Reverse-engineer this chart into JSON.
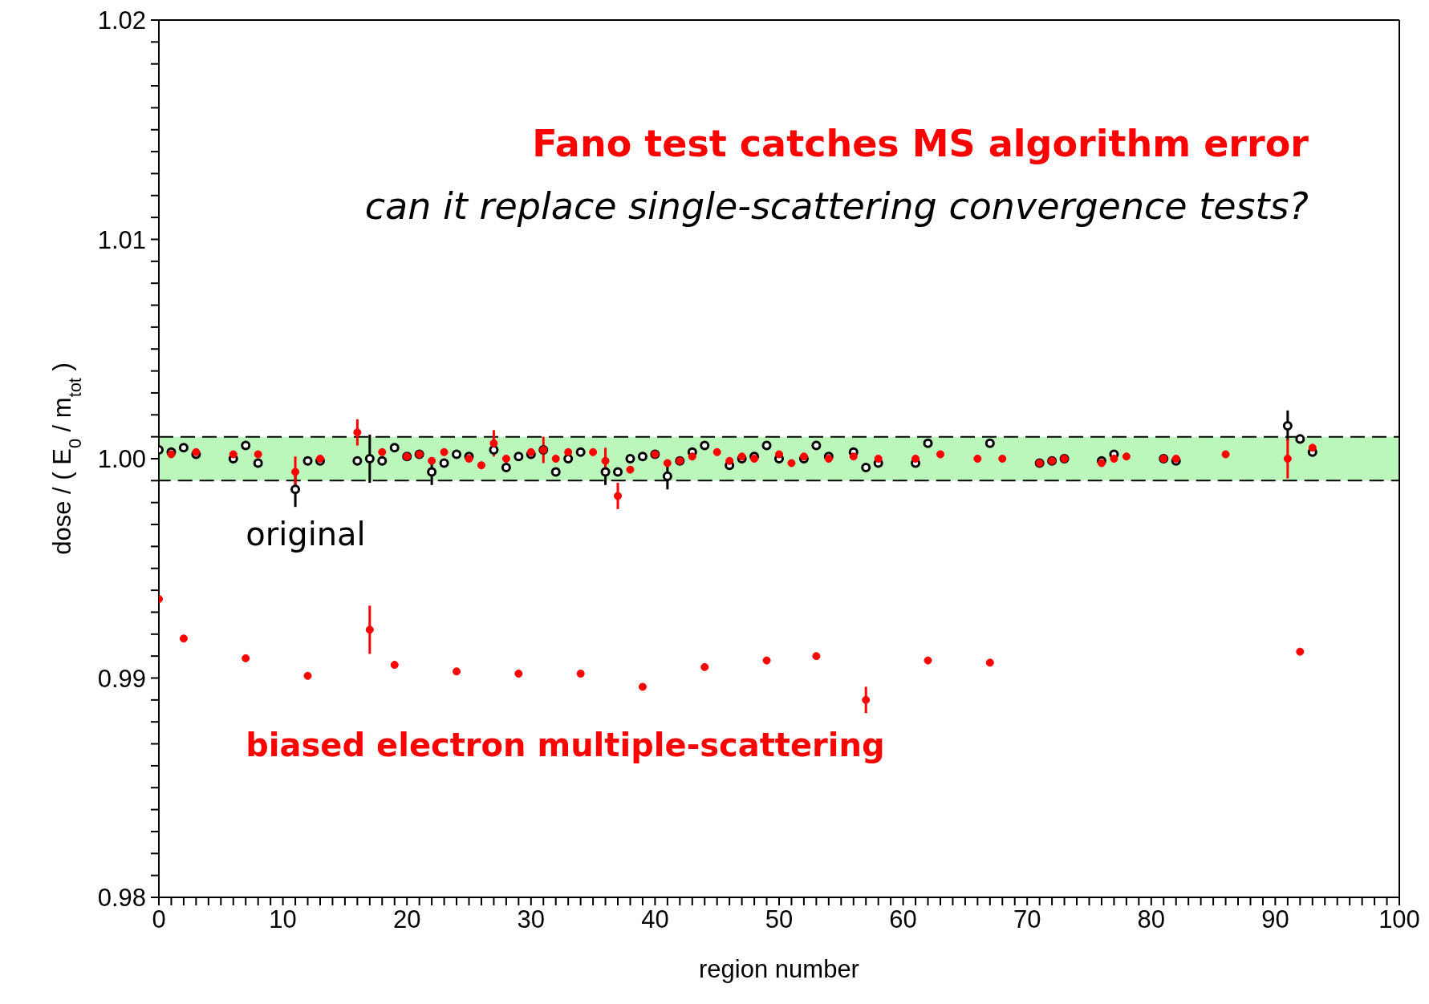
{
  "chart_data": {
    "type": "scatter",
    "annotations": [
      "Fano test catches MS algorithm error",
      "can it replace single-scattering convergence tests?"
    ],
    "xlabel": "region number",
    "ylabel": "dose  /  ( E$_{0}$ / m$_{tot}$ )",
    "xlim": [
      0,
      100
    ],
    "ylim": [
      0.98,
      1.02
    ],
    "xticks": [
      0,
      {
        "value": 1,
        "label": null
      },
      {
        "value": 2,
        "label": null
      },
      {
        "value": 3,
        "label": null
      },
      {
        "value": 4,
        "label": null
      },
      {
        "value": 5,
        "label": null
      },
      {
        "value": 6,
        "label": null
      },
      {
        "value": 7,
        "label": null
      },
      {
        "value": 8,
        "label": null
      },
      {
        "value": 9,
        "label": null
      },
      10,
      {
        "value": 11,
        "label": null
      },
      {
        "value": 12,
        "label": null
      },
      {
        "value": 13,
        "label": null
      },
      {
        "value": 14,
        "label": null
      },
      {
        "value": 15,
        "label": null
      },
      {
        "value": 16,
        "label": null
      },
      {
        "value": 17,
        "label": null
      },
      {
        "value": 18,
        "label": null
      },
      {
        "value": 19,
        "label": null
      },
      20,
      {
        "value": 21,
        "label": null
      },
      {
        "value": 22,
        "label": null
      },
      {
        "value": 23,
        "label": null
      },
      {
        "value": 24,
        "label": null
      },
      {
        "value": 25,
        "label": null
      },
      {
        "value": 26,
        "label": null
      },
      {
        "value": 27,
        "label": null
      },
      {
        "value": 28,
        "label": null
      },
      {
        "value": 29,
        "label": null
      },
      30,
      {
        "value": 31,
        "label": null
      },
      {
        "value": 32,
        "label": null
      },
      {
        "value": 33,
        "label": null
      },
      {
        "value": 34,
        "label": null
      },
      {
        "value": 35,
        "label": null
      },
      {
        "value": 36,
        "label": null
      },
      {
        "value": 37,
        "label": null
      },
      {
        "value": 38,
        "label": null
      },
      {
        "value": 39,
        "label": null
      },
      40,
      {
        "value": 41,
        "label": null
      },
      {
        "value": 42,
        "label": null
      },
      {
        "value": 43,
        "label": null
      },
      {
        "value": 44,
        "label": null
      },
      {
        "value": 45,
        "label": null
      },
      {
        "value": 46,
        "label": null
      },
      {
        "value": 47,
        "label": null
      },
      {
        "value": 48,
        "label": null
      },
      {
        "value": 49,
        "label": null
      },
      50,
      {
        "value": 51,
        "label": null
      },
      {
        "value": 52,
        "label": null
      },
      {
        "value": 53,
        "label": null
      },
      {
        "value": 54,
        "label": null
      },
      {
        "value": 55,
        "label": null
      },
      {
        "value": 56,
        "label": null
      },
      {
        "value": 57,
        "label": null
      },
      {
        "value": 58,
        "label": null
      },
      {
        "value": 59,
        "label": null
      },
      60,
      {
        "value": 61,
        "label": null
      },
      {
        "value": 62,
        "label": null
      },
      {
        "value": 63,
        "label": null
      },
      {
        "value": 64,
        "label": null
      },
      {
        "value": 65,
        "label": null
      },
      {
        "value": 66,
        "label": null
      },
      {
        "value": 67,
        "label": null
      },
      {
        "value": 68,
        "label": null
      },
      {
        "value": 69,
        "label": null
      },
      70,
      {
        "value": 71,
        "label": null
      },
      {
        "value": 72,
        "label": null
      },
      {
        "value": 73,
        "label": null
      },
      {
        "value": 74,
        "label": null
      },
      {
        "value": 75,
        "label": null
      },
      {
        "value": 76,
        "label": null
      },
      {
        "value": 77,
        "label": null
      },
      {
        "value": 78,
        "label": null
      },
      {
        "value": 79,
        "label": null
      },
      80,
      {
        "value": 81,
        "label": null
      },
      {
        "value": 82,
        "label": null
      },
      {
        "value": 83,
        "label": null
      },
      {
        "value": 84,
        "label": null
      },
      {
        "value": 85,
        "label": null
      },
      {
        "value": 86,
        "label": null
      },
      {
        "value": 87,
        "label": null
      },
      {
        "value": 88,
        "label": null
      },
      {
        "value": 89,
        "label": null
      },
      90,
      {
        "value": 91,
        "label": null
      },
      {
        "value": 92,
        "label": null
      },
      {
        "value": 93,
        "label": null
      },
      {
        "value": 94,
        "label": null
      },
      {
        "value": 95,
        "label": null
      },
      {
        "value": 96,
        "label": null
      },
      {
        "value": 97,
        "label": null
      },
      {
        "value": 98,
        "label": null
      },
      {
        "value": 99,
        "label": null
      },
      100
    ],
    "yticks": [
      0.98,
      {
        "value": 0.981,
        "label": null
      },
      {
        "value": 0.982,
        "label": null
      },
      {
        "value": 0.983,
        "label": null
      },
      {
        "value": 0.984,
        "label": null
      },
      {
        "value": 0.985,
        "label": null
      },
      {
        "value": 0.986,
        "label": null
      },
      {
        "value": 0.987,
        "label": null
      },
      {
        "value": 0.988,
        "label": null
      },
      {
        "value": 0.989,
        "label": null
      },
      0.99,
      {
        "value": 0.991,
        "label": null
      },
      {
        "value": 0.992,
        "label": null
      },
      {
        "value": 0.993,
        "label": null
      },
      {
        "value": 0.994,
        "label": null
      },
      {
        "value": 0.995,
        "label": null
      },
      {
        "value": 0.996,
        "label": null
      },
      {
        "value": 0.997,
        "label": null
      },
      {
        "value": 0.998,
        "label": null
      },
      {
        "value": 0.999,
        "label": null
      },
      {
        "value": 1.0,
        "label": "1.00"
      },
      {
        "value": 1.001,
        "label": null
      },
      {
        "value": 1.002,
        "label": null
      },
      {
        "value": 1.003,
        "label": null
      },
      {
        "value": 1.004,
        "label": null
      },
      {
        "value": 1.005,
        "label": null
      },
      {
        "value": 1.006,
        "label": null
      },
      {
        "value": 1.007,
        "label": null
      },
      {
        "value": 1.008,
        "label": null
      },
      {
        "value": 1.009,
        "label": null
      },
      1.01,
      {
        "value": 1.011,
        "label": null
      },
      {
        "value": 1.012,
        "label": null
      },
      {
        "value": 1.013,
        "label": null
      },
      {
        "value": 1.014,
        "label": null
      },
      {
        "value": 1.015,
        "label": null
      },
      {
        "value": 1.016,
        "label": null
      },
      {
        "value": 1.017,
        "label": null
      },
      {
        "value": 1.018,
        "label": null
      },
      {
        "value": 1.019,
        "label": null
      },
      {
        "value": 1.02,
        "label": "1.02"
      }
    ],
    "bands": [
      {
        "axis": "y",
        "from": 0.999,
        "to": 1.001,
        "color": "#bbf7bb"
      }
    ],
    "marker": "circle",
    "series": [
      {
        "name": "original",
        "color": "#ffffff",
        "x": [
          0,
          1,
          2,
          3,
          6,
          7,
          8,
          11,
          12,
          13,
          16,
          17,
          18,
          19,
          20,
          21,
          22,
          23,
          24,
          25,
          27,
          28,
          29,
          30,
          31,
          32,
          33,
          34,
          36,
          37,
          38,
          39,
          40,
          41,
          42,
          43,
          44,
          46,
          47,
          48,
          49,
          50,
          52,
          53,
          54,
          56,
          57,
          58,
          61,
          62,
          67,
          71,
          72,
          73,
          76,
          77,
          81,
          82,
          91,
          92,
          93
        ],
        "values": [
          1.0004,
          1.0003,
          1.0005,
          1.0002,
          1.0,
          1.0006,
          0.9998,
          0.9986,
          0.9999,
          0.9999,
          0.9999,
          1.0,
          0.9999,
          1.0005,
          1.0001,
          1.0002,
          0.9994,
          0.9998,
          1.0002,
          1.0001,
          1.0004,
          0.9996,
          1.0001,
          1.0002,
          1.0004,
          0.9994,
          1.0,
          1.0003,
          0.9994,
          0.9994,
          1.0,
          1.0001,
          1.0002,
          0.9992,
          0.9999,
          1.0003,
          1.0006,
          0.9997,
          1.0,
          1.0001,
          1.0006,
          1.0,
          1.0,
          1.0006,
          1.0001,
          1.0003,
          0.9996,
          0.9998,
          0.9998,
          1.0007,
          1.0007,
          0.9998,
          0.9999,
          1.0,
          0.9999,
          1.0002,
          1.0,
          0.9999,
          1.0015,
          1.0009,
          1.0003
        ],
        "errors": [
          null,
          null,
          null,
          null,
          null,
          null,
          null,
          0.0008,
          null,
          null,
          null,
          0.0011,
          null,
          null,
          null,
          null,
          0.0006,
          null,
          null,
          null,
          null,
          null,
          null,
          null,
          null,
          null,
          null,
          null,
          0.0006,
          null,
          null,
          null,
          null,
          0.0006,
          null,
          null,
          null,
          null,
          null,
          null,
          null,
          null,
          null,
          null,
          null,
          null,
          null,
          null,
          null,
          null,
          null,
          null,
          null,
          null,
          null,
          null,
          null,
          null,
          0.0007,
          null,
          null
        ]
      },
      {
        "color": "#ff0000",
        "x": [
          1,
          3,
          6,
          8,
          11,
          13,
          16,
          18,
          20,
          21,
          22,
          23,
          25,
          26,
          27,
          28,
          30,
          31,
          32,
          33,
          35,
          36,
          37,
          38,
          40,
          41,
          42,
          43,
          45,
          46,
          47,
          48,
          50,
          51,
          52,
          54,
          56,
          58,
          61,
          63,
          66,
          68,
          71,
          72,
          73,
          76,
          77,
          78,
          81,
          82,
          86,
          91,
          93
        ],
        "values": [
          1.0002,
          1.0003,
          1.0002,
          1.0002,
          0.9994,
          1.0,
          1.0012,
          1.0003,
          1.0001,
          1.0002,
          0.9999,
          1.0003,
          1.0,
          0.9997,
          1.0007,
          1.0,
          1.0003,
          1.0004,
          1.0,
          1.0003,
          1.0003,
          0.9999,
          0.9983,
          0.9995,
          1.0002,
          0.9998,
          0.9999,
          1.0001,
          1.0003,
          0.9999,
          1.0001,
          1.0,
          1.0002,
          0.9998,
          1.0001,
          1.0,
          1.0001,
          1.0,
          1.0,
          1.0002,
          1.0,
          1.0,
          0.9998,
          0.9999,
          1.0,
          0.9998,
          1.0,
          1.0001,
          1.0,
          1.0,
          1.0002,
          1.0,
          1.0005
        ],
        "errors": [
          null,
          null,
          null,
          null,
          0.0007,
          null,
          0.0006,
          null,
          null,
          null,
          null,
          null,
          null,
          null,
          0.0006,
          null,
          null,
          0.0006,
          null,
          null,
          null,
          0.0006,
          0.0006,
          null,
          null,
          null,
          null,
          null,
          null,
          null,
          null,
          null,
          null,
          null,
          null,
          null,
          null,
          null,
          null,
          null,
          null,
          null,
          null,
          null,
          null,
          null,
          null,
          null,
          null,
          null,
          null,
          0.0009,
          null
        ]
      },
      {
        "name": "biased electron multiple-scattering",
        "color": "#ff0000",
        "x": [
          0,
          2,
          7,
          12,
          17,
          19,
          24,
          29,
          34,
          39,
          44,
          49,
          53,
          57,
          62,
          67,
          92
        ],
        "values": [
          0.9936,
          0.9918,
          0.9909,
          0.9901,
          0.9922,
          0.9906,
          0.9903,
          0.9902,
          0.9902,
          0.9896,
          0.9905,
          0.9908,
          0.991,
          0.989,
          0.9908,
          0.9907,
          0.9912
        ],
        "errors": [
          null,
          null,
          null,
          null,
          0.0011,
          null,
          null,
          null,
          null,
          null,
          null,
          null,
          null,
          0.0006,
          null,
          null,
          null
        ]
      }
    ]
  }
}
